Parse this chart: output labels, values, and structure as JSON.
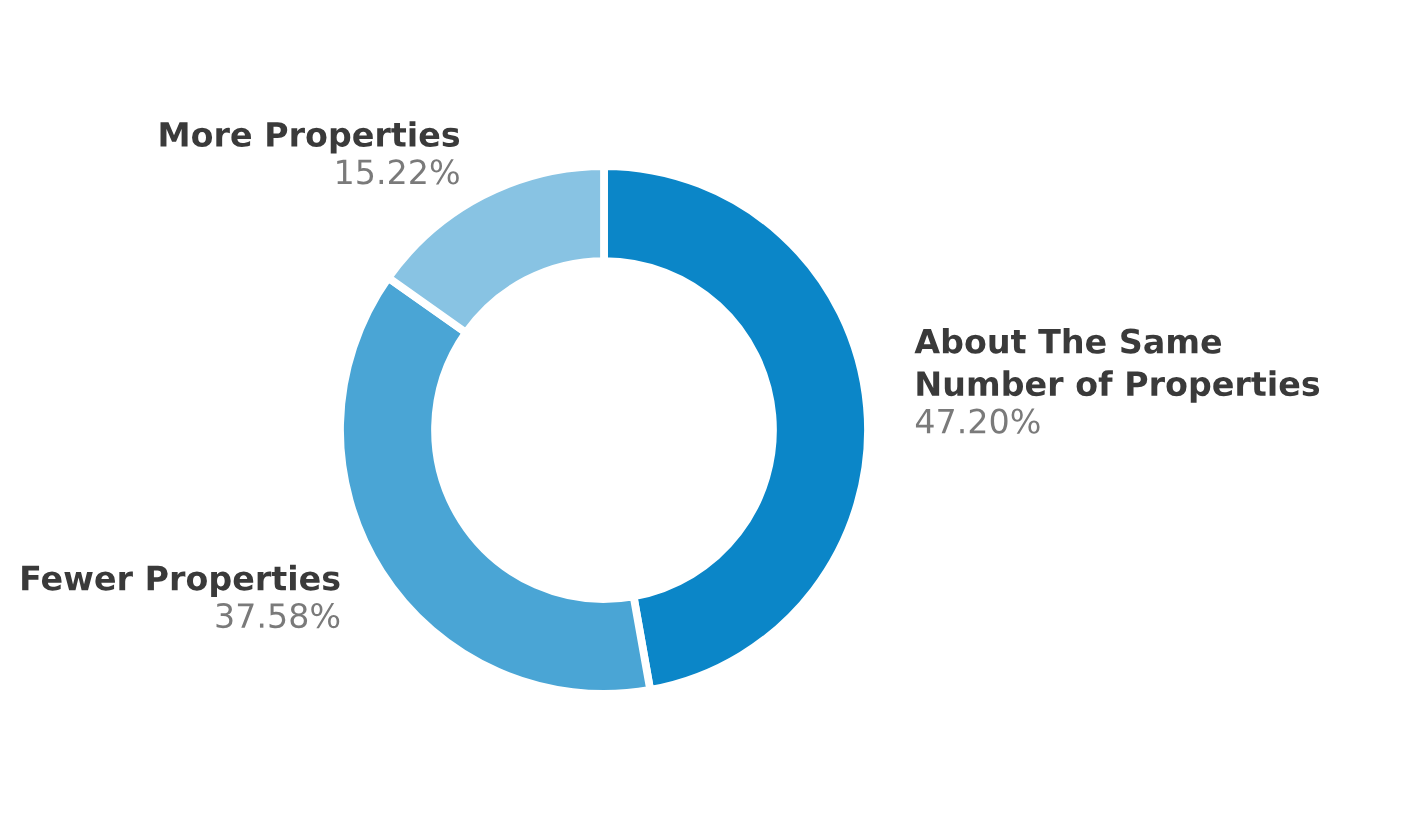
{
  "chart_data": {
    "type": "donut",
    "categories": [
      "About The Same\nNumber of Properties",
      "Fewer Properties",
      "More Properties"
    ],
    "values": [
      47.2,
      37.58,
      15.22
    ],
    "colors": [
      "#0b86c8",
      "#4aa5d5",
      "#88c3e3"
    ],
    "value_labels": [
      "47.20%",
      "37.58%",
      "15.22%"
    ],
    "legend": false
  }
}
